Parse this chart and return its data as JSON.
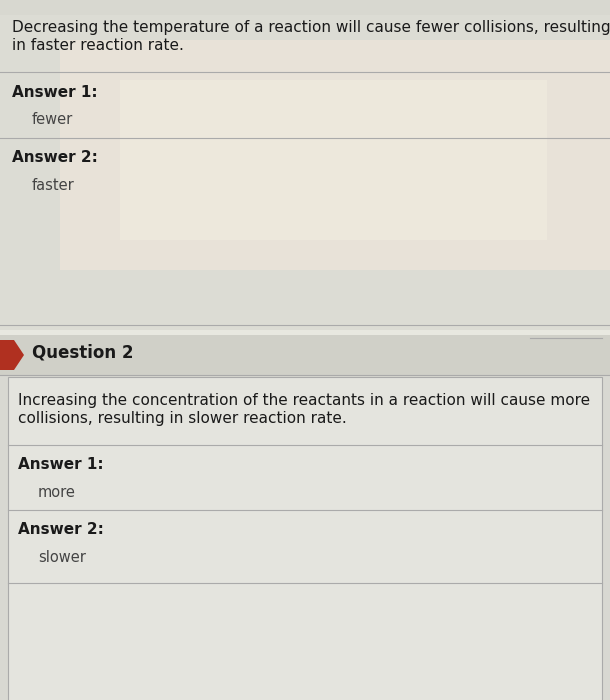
{
  "bg_top": "#e8e8e0",
  "bg_section1": "#deded6",
  "bg_section2": "#e0e0d8",
  "question1_line1": "Decreasing the temperature of a reaction will cause fewer collisions, resulting",
  "question1_line2": "in faster reaction rate.",
  "q1_answer1_label": "Answer 1:",
  "q1_answer1_value": "fewer",
  "q1_answer2_label": "Answer 2:",
  "q1_answer2_value": "faster",
  "question2_label": "Question 2",
  "question2_line1": "Increasing the concentration of the reactants in a reaction will cause more",
  "question2_line2": "collisions, resulting in slower reaction rate.",
  "q2_answer1_label": "Answer 1:",
  "q2_answer1_value": "more",
  "q2_answer2_label": "Answer 2:",
  "q2_answer2_value": "slower",
  "arrow_color": "#b03020",
  "divider_color": "#aaaaaa",
  "text_dark": "#1a1a1a",
  "text_answer": "#444444",
  "label_bold_color": "#1a1a1a",
  "section2_header_bg": "#d0d0c8",
  "section2_content_bg": "#e8e8e2",
  "border_color": "#aaaaaa"
}
